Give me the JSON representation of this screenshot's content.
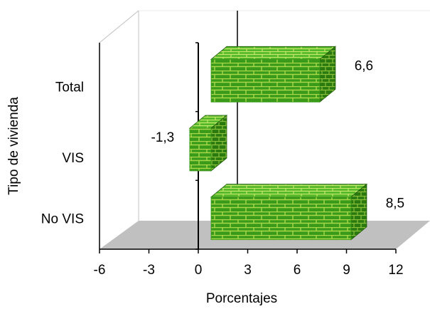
{
  "chart_data": {
    "type": "bar",
    "orientation": "horizontal",
    "three_d": true,
    "x_label": "Porcentajes",
    "y_label": "Tipo de vivienda",
    "categories": [
      "Total",
      "VIS",
      "No  VIS"
    ],
    "values": [
      6.6,
      -1.3,
      8.5
    ],
    "value_labels": [
      "6,6",
      "-1,3",
      "8,5"
    ],
    "color": "#3a9a1a",
    "xlim": [
      -6,
      12
    ],
    "xticks": [
      -6,
      -3,
      0,
      3,
      6,
      9,
      12
    ]
  }
}
